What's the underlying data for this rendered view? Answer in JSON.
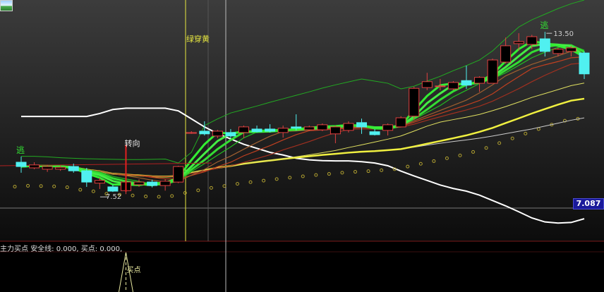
{
  "chart_data": {
    "type": "candlestick",
    "ylim": [
      5.68,
      14.69
    ],
    "candles": [
      [
        8.63,
        8.84,
        8.24,
        8.47
      ],
      [
        8.42,
        8.63,
        8.37,
        8.53
      ],
      [
        8.37,
        8.53,
        8.27,
        8.47
      ],
      [
        8.37,
        8.5,
        8.31,
        8.44
      ],
      [
        8.47,
        8.58,
        8.24,
        8.31
      ],
      [
        8.31,
        8.42,
        7.71,
        7.89
      ],
      [
        7.85,
        8.05,
        7.63,
        7.95
      ],
      [
        7.71,
        7.79,
        7.52,
        7.55
      ],
      [
        7.57,
        8.05,
        7.44,
        7.89
      ],
      [
        7.79,
        7.99,
        7.71,
        7.89
      ],
      [
        7.89,
        7.98,
        7.69,
        7.76
      ],
      [
        7.76,
        7.99,
        7.57,
        7.92
      ],
      [
        7.89,
        8.5,
        7.85,
        8.47
      ],
      [
        9.71,
        9.79,
        9.69,
        9.74
      ],
      [
        9.79,
        10.16,
        9.63,
        9.69
      ],
      [
        9.61,
        9.84,
        9.53,
        9.79
      ],
      [
        9.74,
        9.87,
        9.53,
        9.61
      ],
      [
        9.74,
        10.0,
        9.53,
        9.95
      ],
      [
        9.87,
        10.0,
        9.74,
        9.77
      ],
      [
        9.87,
        10.05,
        9.74,
        9.79
      ],
      [
        9.74,
        10.0,
        9.55,
        9.9
      ],
      [
        9.95,
        10.42,
        9.82,
        9.9
      ],
      [
        9.84,
        10.0,
        9.79,
        9.95
      ],
      [
        9.84,
        10.08,
        9.79,
        10.03
      ],
      [
        9.69,
        10.0,
        9.34,
        9.95
      ],
      [
        9.82,
        10.16,
        9.74,
        10.08
      ],
      [
        10.11,
        10.26,
        9.69,
        9.95
      ],
      [
        9.77,
        9.87,
        9.63,
        9.66
      ],
      [
        9.82,
        10.08,
        9.63,
        10.03
      ],
      [
        9.95,
        10.35,
        9.95,
        10.29
      ],
      [
        10.35,
        11.45,
        10.21,
        11.39
      ],
      [
        11.42,
        11.97,
        11.32,
        11.64
      ],
      [
        11.48,
        11.74,
        11.32,
        11.48
      ],
      [
        11.37,
        11.66,
        11.32,
        11.61
      ],
      [
        11.68,
        12.24,
        11.37,
        11.51
      ],
      [
        11.58,
        11.84,
        11.26,
        11.8
      ],
      [
        11.58,
        12.5,
        11.58,
        12.45
      ],
      [
        12.37,
        13.29,
        12.32,
        12.98
      ],
      [
        13.06,
        13.45,
        12.79,
        13.14
      ],
      [
        13.03,
        13.39,
        12.85,
        13.32
      ],
      [
        13.24,
        13.5,
        12.58,
        12.77
      ],
      [
        12.69,
        12.9,
        12.58,
        12.85
      ],
      [
        12.77,
        12.98,
        12.58,
        12.9
      ],
      [
        12.71,
        12.77,
        11.74,
        11.93
      ]
    ],
    "white_line": [
      10.34,
      10.34,
      10.34,
      10.34,
      10.34,
      10.34,
      10.45,
      10.6,
      10.65,
      10.65,
      10.65,
      10.65,
      10.55,
      10.25,
      9.95,
      9.7,
      9.5,
      9.3,
      9.15,
      9.0,
      8.9,
      8.78,
      8.72,
      8.69,
      8.68,
      8.68,
      8.65,
      8.6,
      8.5,
      8.3,
      8.12,
      7.95,
      7.78,
      7.65,
      7.55,
      7.4,
      7.2,
      7.0,
      6.78,
      6.55,
      6.4,
      6.36,
      6.38,
      6.52
    ],
    "upper_band": [
      8.85,
      8.85,
      8.83,
      8.8,
      8.78,
      8.76,
      8.75,
      8.74,
      8.73,
      8.73,
      8.74,
      8.75,
      8.6,
      9.0,
      10.0,
      10.25,
      10.47,
      10.6,
      10.73,
      10.87,
      11.0,
      11.13,
      11.26,
      11.4,
      11.52,
      11.63,
      11.74,
      11.66,
      11.58,
      11.37,
      11.47,
      11.66,
      11.84,
      12.05,
      12.24,
      12.45,
      12.79,
      13.24,
      13.68,
      13.95,
      14.16,
      14.37,
      14.55,
      14.69
    ],
    "annotations": {
      "escape_label": "逃",
      "turn_label": "转向",
      "low_label": "7.52",
      "high_label": "13.50",
      "cross_label": "绿穿黄",
      "buy_label": "买点"
    },
    "current_price": "7.087",
    "colors": {
      "up": "#e04040",
      "down": "#50f0f0",
      "ma_bright": "#33ee33",
      "ma_yellow": "#f0f040",
      "band": "#22aa22",
      "white": "#ffffff"
    },
    "escape_candles": [
      0,
      40
    ],
    "turn_candle": 8,
    "buy_candle": 8,
    "low_candle": 7,
    "high_candle": 40
  },
  "lower_pane": {
    "indicator_name": "主力买点",
    "safe_line_label": "安全线:",
    "safe_line_value": "0.000,",
    "buy_point_label": "买点:",
    "buy_point_value": "0.000,"
  }
}
